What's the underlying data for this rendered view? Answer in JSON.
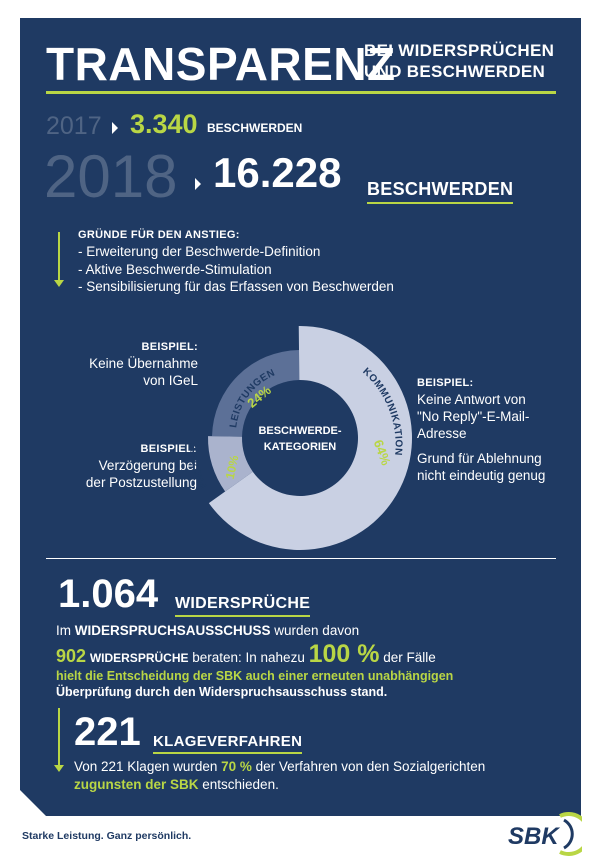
{
  "header": {
    "title": "TRANSPARENZ",
    "subtitle_line1": "BEI WIDERSPRÜCHEN",
    "subtitle_line2": "UND BESCHWERDEN"
  },
  "complaints": {
    "year_prev": "2017",
    "value_prev": "3.340",
    "label_prev": "BESCHWERDEN",
    "year_curr": "2018",
    "value_curr": "16.228",
    "label_curr": "BESCHWERDEN"
  },
  "reasons": {
    "heading": "GRÜNDE FÜR DEN ANSTIEG:",
    "items": [
      "- Erweiterung der Beschwerde-Definition",
      "- Aktive Beschwerde-Stimulation",
      "- Sensibilisierung für das Erfassen von Beschwerden"
    ]
  },
  "donut": {
    "center_line1": "BESCHWERDE-",
    "center_line2": "KATEGORIEN",
    "segments": [
      {
        "label": "LEISTUNGEN",
        "percent_text": "24%",
        "value": 24,
        "color": "#5c7097"
      },
      {
        "label": "KOMMUNIKATION",
        "percent_text": "64%",
        "value": 64,
        "color": "#c9d0e3"
      },
      {
        "label": "PROZESS",
        "percent_text": "10%",
        "value": 10,
        "color": "#aab3cd"
      }
    ]
  },
  "examples": {
    "ex1_heading": "BEISPIEL:",
    "ex1_line1": "Keine Übernahme",
    "ex1_line2": "von IGeL",
    "ex2_heading": "BEISPIEL:",
    "ex2_line1": "Verzögerung bei",
    "ex2_line2": "der Postzustellung",
    "ex3_heading": "BEISPIEL:",
    "ex3_line1": "Keine Antwort von",
    "ex3_line2": "\"No Reply\"-E-Mail-",
    "ex3_line3": "Adresse",
    "ex3_line4": "Grund für Ablehnung",
    "ex3_line5": "nicht eindeutig genug"
  },
  "objections": {
    "value": "1.064",
    "label": "WIDERSPRÜCHE",
    "line1_prefix": "Im ",
    "line1_bold": "WIDERSPRUCHSAUSSCHUSS",
    "line1_suffix": " wurden davon",
    "count": "902",
    "count_label": "WIDERSPRÜCHE",
    "line2_middle": " beraten: In nahezu ",
    "percent": "100 %",
    "line2_suffix": " der Fälle",
    "line3_green": "hielt die Entscheidung der SBK auch einer erneuten unabhängigen",
    "line4": "Überprüfung durch den Widerspruchsausschuss stand."
  },
  "lawsuits": {
    "value": "221",
    "label": "KLAGEVERFAHREN",
    "text_prefix": "Von 221 Klagen wurden ",
    "percent": "70 %",
    "text_suffix": " der Verfahren von den Sozialgerichten",
    "text_green": "zugunsten der SBK",
    "text_end": " entschieden."
  },
  "footer": {
    "slogan": "Starke Leistung. Ganz persönlich.",
    "logo_text": "SBK"
  },
  "colors": {
    "background": "#1f3a63",
    "accent": "#b9d645",
    "muted": "#4f6484"
  }
}
